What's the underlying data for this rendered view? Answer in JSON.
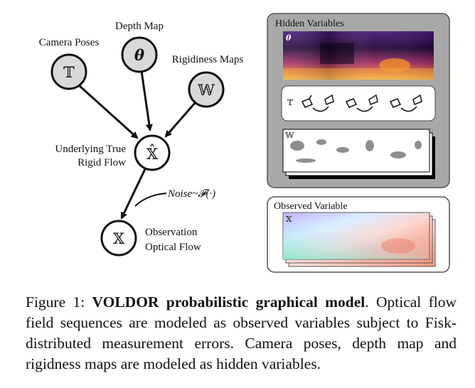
{
  "nodes": {
    "camera_poses": {
      "symbol": "𝕋",
      "label": "Camera Poses"
    },
    "depth_map": {
      "symbol": "θ",
      "label": "Depth Map"
    },
    "rigidness_maps": {
      "symbol": "𝕎",
      "label": "Rigidiness Maps"
    },
    "rigid_flow": {
      "symbol": "𝕏̂",
      "label_line1": "Underlying True",
      "label_line2": "Rigid Flow"
    },
    "observation": {
      "symbol": "𝕏",
      "label_line1": "Observation",
      "label_line2": "Optical Flow"
    }
  },
  "noise_label": "Noise~𝓕(·)",
  "hidden_panel": {
    "title": "Hidden Variables",
    "depth_tag": "θ",
    "poses_tag": "𝕋",
    "rigidness_tag": "𝕎"
  },
  "observed_panel": {
    "title": "Observed Variable",
    "flow_tag": "𝕏"
  },
  "caption": {
    "prefix": "Figure 1: ",
    "bold": "VOLDOR probabilistic graphical model",
    "rest": ". Optical flow field sequences are modeled as observed variables subject to Fisk-distributed measurement errors. Camera poses, depth map and rigidness maps are modeled as hidden variables."
  },
  "colors": {
    "hidden_node_fill": "#d9d9d9",
    "panel_fill": "#a8a8a8",
    "panel_stroke": "#555555",
    "observed_panel_fill": "#ffffff"
  }
}
